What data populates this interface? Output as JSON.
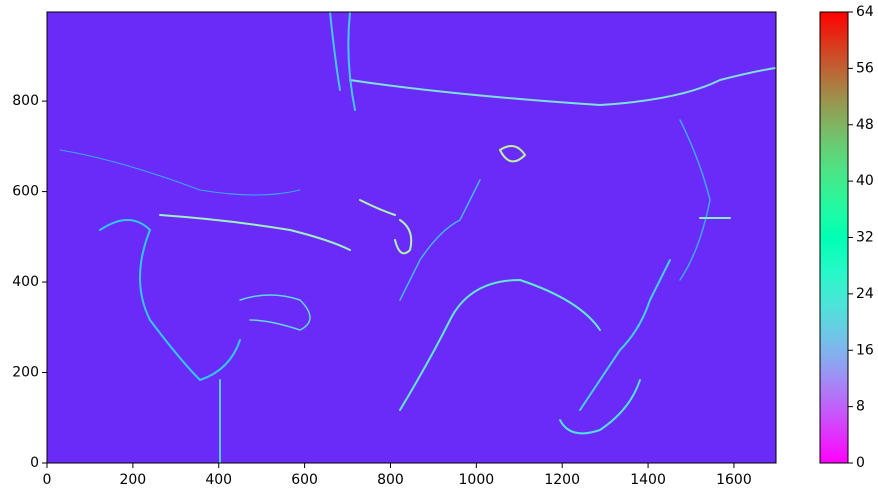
{
  "chart_data": {
    "type": "heatmap",
    "cmap": "rainbow",
    "xlim": [
      0,
      1698
    ],
    "xticks": [
      0,
      200,
      400,
      600,
      800,
      1000,
      1200,
      1400,
      1600
    ],
    "ylim": [
      0,
      997
    ],
    "yticks": [
      0,
      200,
      400,
      600,
      800
    ],
    "colorbar": {
      "clim": [
        0,
        64
      ],
      "ticks": [
        0,
        8,
        16,
        24,
        32,
        40,
        48,
        56,
        64
      ]
    }
  }
}
